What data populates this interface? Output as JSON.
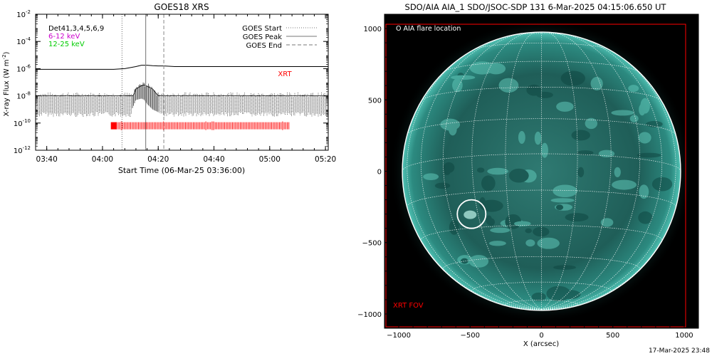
{
  "chart_data": [
    {
      "type": "line",
      "title": "GOES18 XRS",
      "xlabel": "Start Time (06-Mar-25 03:36:00)",
      "ylabel_main": "X-ray Flux (W m",
      "ylabel_sup": "-2",
      "ylabel_close": ")",
      "y_log_scale": true,
      "xlim_min_from_start": [
        0,
        105
      ],
      "ylim_exp": [
        -12,
        -2
      ],
      "x_ticks": [
        {
          "label": "03:40",
          "min": 4
        },
        {
          "label": "04:00",
          "min": 24
        },
        {
          "label": "04:20",
          "min": 44
        },
        {
          "label": "04:40",
          "min": 64
        },
        {
          "label": "05:00",
          "min": 84
        },
        {
          "label": "05:20",
          "min": 104
        }
      ],
      "y_ticks": [
        {
          "base": "10",
          "exp": "-12",
          "value": -12
        },
        {
          "base": "10",
          "exp": "-10",
          "value": -10
        },
        {
          "base": "10",
          "exp": "-8",
          "value": -8
        },
        {
          "base": "10",
          "exp": "-6",
          "value": -6
        },
        {
          "base": "10",
          "exp": "-4",
          "value": -4
        },
        {
          "base": "10",
          "exp": "-2",
          "value": -2
        }
      ],
      "legend_left": [
        {
          "text": "Det41,3,4,5,6,9",
          "color": "#000000"
        },
        {
          "text": "6-12 keV",
          "color": "#cc00cc"
        },
        {
          "text": "12-25 keV",
          "color": "#00cc00"
        }
      ],
      "legend_right": [
        {
          "text": "GOES Start",
          "dash": "dot"
        },
        {
          "text": "GOES Peak",
          "dash": "solid"
        },
        {
          "text": "GOES End",
          "dash": "dash"
        }
      ],
      "goes_start_min": 31.0,
      "goes_peak_min": 39.5,
      "goes_end_min": 46.0,
      "series_long": {
        "name": "",
        "x": [
          0,
          10,
          20,
          28,
          32,
          36,
          38,
          40,
          42,
          44,
          46,
          50,
          55,
          60,
          70,
          80,
          90,
          100,
          105
        ],
        "y_exp": [
          -6.05,
          -6.05,
          -6.05,
          -6.05,
          -6.0,
          -5.85,
          -5.75,
          -5.75,
          -5.78,
          -5.8,
          -5.8,
          -5.85,
          -5.85,
          -5.85,
          -5.85,
          -5.85,
          -5.85,
          -5.85,
          -5.85
        ]
      },
      "series_short_envelope": {
        "name": "",
        "x": [
          0,
          34,
          35,
          36,
          38,
          39,
          40,
          42,
          44,
          105
        ],
        "y_exp_top": [
          -8.0,
          -8.0,
          -8.0,
          -7.5,
          -7.25,
          -7.2,
          -7.3,
          -7.5,
          -8.0,
          -8.0
        ],
        "y_exp_bottom": [
          -9.2,
          -9.2,
          -8.8,
          -8.3,
          -8.2,
          -8.3,
          -8.6,
          -9.0,
          -9.2,
          -9.2
        ]
      },
      "xrt_label": "XRT",
      "xrt_label_color": "#ff0000",
      "xrt_bar_range_min": [
        27,
        91
      ],
      "xrt_bar_level_exp": -10.2
    },
    {
      "type": "image",
      "title": "SDO/AIA AIA_1 SDO/JSOC-SDP 131  6-Mar-2025 04:15:06.650 UT",
      "xlabel": "X (arcsec)",
      "xlim": [
        -1100,
        1100
      ],
      "ylim": [
        -1100,
        1100
      ],
      "x_ticks": [
        -1000,
        -500,
        0,
        500,
        1000
      ],
      "y_ticks": [
        -1000,
        -500,
        0,
        500,
        1000
      ],
      "solar_radius_arcsec": 975,
      "legend": "O AIA flare location",
      "flare_location_arcsec": [
        -490,
        -300
      ],
      "flare_circle_radius_arcsec": 100,
      "xrt_fov_label": "XRT FOV",
      "xrt_fov_color": "#ff0000",
      "xrt_fov_arcsec": [
        -1090,
        1010,
        -1090,
        1030
      ],
      "colors": {
        "disk_core": "#2f7a72",
        "disk_edge": "#0d3e3a",
        "limb": "#4fc0b2",
        "grid": "#ffffff"
      }
    }
  ],
  "footer": {
    "timestamp": "17-Mar-2025 23:48"
  }
}
